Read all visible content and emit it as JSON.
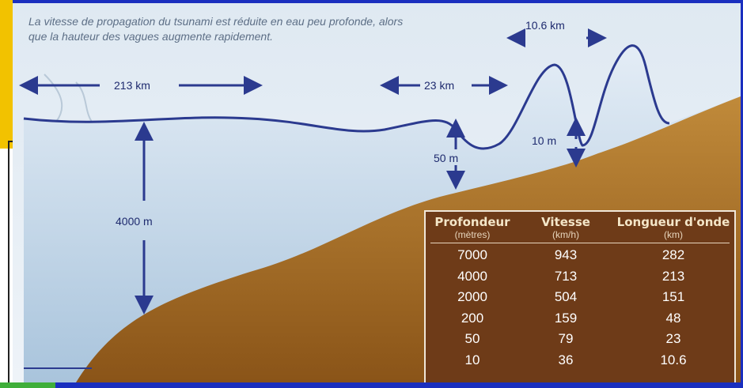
{
  "caption": "La vitesse de propagation du tsunami est réduite en eau peu profonde, alors que la hauteur des vagues augmente rapidement.",
  "labels": {
    "wavelength_deep": "213 km",
    "wavelength_mid": "23 km",
    "wavelength_shallow": "10.6 km",
    "depth_deep": "4000 m",
    "depth_mid": "50 m",
    "depth_shallow": "10 m"
  },
  "table": {
    "headers": [
      {
        "title": "Profondeur",
        "unit": "(mètres)"
      },
      {
        "title": "Vitesse",
        "unit": "(km/h)"
      },
      {
        "title": "Longueur d'onde",
        "unit": "(km)"
      }
    ],
    "rows": [
      [
        "7000",
        "943",
        "282"
      ],
      [
        "4000",
        "713",
        "213"
      ],
      [
        "2000",
        "504",
        "151"
      ],
      [
        "200",
        "159",
        "48"
      ],
      [
        "50",
        "79",
        "23"
      ],
      [
        "10",
        "36",
        "10.6"
      ]
    ]
  },
  "colors": {
    "frame": "#1a2fbf",
    "sea": "#c9dcec",
    "seabed": "#a06a25",
    "wave_line": "#2b3a8f",
    "table_bg": "#6e3b18"
  }
}
